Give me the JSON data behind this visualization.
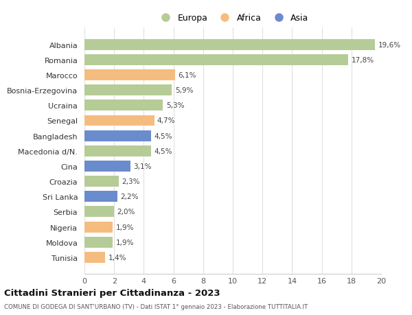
{
  "countries": [
    "Albania",
    "Romania",
    "Marocco",
    "Bosnia-Erzegovina",
    "Ucraina",
    "Senegal",
    "Bangladesh",
    "Macedonia d/N.",
    "Cina",
    "Croazia",
    "Sri Lanka",
    "Serbia",
    "Nigeria",
    "Moldova",
    "Tunisia"
  ],
  "values": [
    19.6,
    17.8,
    6.1,
    5.9,
    5.3,
    4.7,
    4.5,
    4.5,
    3.1,
    2.3,
    2.2,
    2.0,
    1.9,
    1.9,
    1.4
  ],
  "continents": [
    "Europa",
    "Europa",
    "Africa",
    "Europa",
    "Europa",
    "Africa",
    "Asia",
    "Europa",
    "Asia",
    "Europa",
    "Asia",
    "Europa",
    "Africa",
    "Europa",
    "Africa"
  ],
  "colors": {
    "Europa": "#b5cc96",
    "Africa": "#f5bc80",
    "Asia": "#6b8ccc"
  },
  "title": "Cittadini Stranieri per Cittadinanza - 2023",
  "subtitle": "COMUNE DI GODEGA DI SANT'URBANO (TV) - Dati ISTAT 1° gennaio 2023 - Elaborazione TUTTITALIA.IT",
  "xlim": [
    0,
    20
  ],
  "xticks": [
    0,
    2,
    4,
    6,
    8,
    10,
    12,
    14,
    16,
    18,
    20
  ],
  "label_format": [
    "19,6%",
    "17,8%",
    "6,1%",
    "5,9%",
    "5,3%",
    "4,7%",
    "4,5%",
    "4,5%",
    "3,1%",
    "2,3%",
    "2,2%",
    "2,0%",
    "1,9%",
    "1,9%",
    "1,4%"
  ],
  "background_color": "#ffffff",
  "grid_color": "#e0e0e0"
}
